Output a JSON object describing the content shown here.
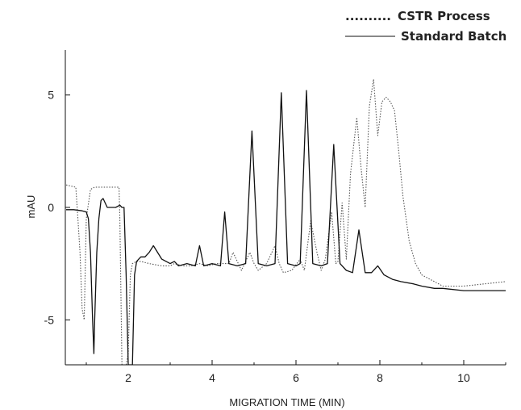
{
  "chart_data": {
    "type": "line",
    "title": "",
    "xlabel": "MIGRATION TIME (MIN)",
    "ylabel": "mAU",
    "xlim": [
      0.5,
      11.0
    ],
    "ylim": [
      -7.0,
      7.0
    ],
    "x_ticks": [
      2,
      4,
      6,
      8,
      10
    ],
    "y_ticks": [
      5,
      0,
      -5
    ],
    "x_tick_labels": [
      "2",
      "4",
      "6",
      "8",
      "10"
    ],
    "y_tick_labels": [
      "5",
      "0",
      "-5"
    ],
    "grid": false,
    "legend": {
      "placement": "top-right",
      "entries": [
        {
          "marker": "..........",
          "label": "CSTR Process",
          "style": "dotted"
        },
        {
          "marker": "",
          "label": "Standard Batch",
          "style": "solid"
        }
      ]
    },
    "series": [
      {
        "name": "CSTR Process",
        "style": "dotted",
        "color": "#555555",
        "x": [
          0.52,
          0.75,
          0.8,
          0.85,
          0.9,
          0.95,
          1.0,
          1.1,
          1.2,
          1.3,
          1.5,
          1.7,
          1.78,
          1.8,
          1.85,
          1.9,
          1.95,
          2.0,
          2.05,
          2.1,
          2.2,
          2.3,
          2.5,
          2.8,
          3.0,
          3.1,
          3.3,
          3.5,
          3.7,
          3.9,
          4.1,
          4.3,
          4.4,
          4.5,
          4.7,
          4.9,
          5.0,
          5.1,
          5.3,
          5.5,
          5.6,
          5.7,
          5.9,
          6.1,
          6.2,
          6.35,
          6.5,
          6.6,
          6.7,
          6.85,
          6.95,
          7.0,
          7.1,
          7.2,
          7.3,
          7.45,
          7.55,
          7.65,
          7.75,
          7.85,
          7.95,
          8.05,
          8.15,
          8.25,
          8.35,
          8.45,
          8.55,
          8.7,
          8.85,
          9.0,
          9.1,
          9.3,
          9.5,
          10.0,
          10.5,
          11.0
        ],
        "y": [
          1.0,
          0.9,
          -0.5,
          -2.0,
          -4.5,
          -5.0,
          -0.5,
          0.8,
          0.9,
          0.9,
          0.9,
          0.9,
          0.9,
          -0.5,
          -7.0,
          -7.0,
          -7.0,
          -6.5,
          -3.0,
          -2.5,
          -2.4,
          -2.4,
          -2.5,
          -2.6,
          -2.6,
          -2.5,
          -2.6,
          -2.6,
          -2.5,
          -2.6,
          -2.5,
          -2.5,
          -2.5,
          -2.0,
          -2.8,
          -2.0,
          -2.5,
          -2.8,
          -2.5,
          -1.7,
          -2.5,
          -2.9,
          -2.8,
          -2.3,
          -2.8,
          -0.6,
          -2.0,
          -2.8,
          -2.3,
          -0.2,
          -2.5,
          -2.4,
          0.2,
          -2.3,
          1.5,
          4.0,
          1.8,
          0.0,
          4.5,
          5.7,
          3.2,
          4.7,
          4.9,
          4.7,
          4.3,
          2.5,
          0.5,
          -1.5,
          -2.5,
          -3.0,
          -3.1,
          -3.3,
          -3.5,
          -3.5,
          -3.4,
          -3.3
        ]
      },
      {
        "name": "Standard Batch",
        "style": "solid",
        "color": "#111111",
        "x": [
          0.52,
          0.7,
          0.9,
          1.0,
          1.05,
          1.1,
          1.15,
          1.18,
          1.2,
          1.25,
          1.3,
          1.35,
          1.4,
          1.5,
          1.6,
          1.7,
          1.8,
          1.85,
          1.9,
          1.95,
          2.0,
          2.05,
          2.1,
          2.15,
          2.2,
          2.25,
          2.3,
          2.4,
          2.5,
          2.6,
          2.8,
          3.0,
          3.1,
          3.2,
          3.4,
          3.6,
          3.7,
          3.8,
          4.0,
          4.2,
          4.3,
          4.4,
          4.6,
          4.8,
          4.95,
          5.1,
          5.3,
          5.5,
          5.65,
          5.8,
          6.0,
          6.1,
          6.25,
          6.4,
          6.6,
          6.75,
          6.9,
          7.05,
          7.2,
          7.35,
          7.5,
          7.65,
          7.8,
          7.95,
          8.1,
          8.3,
          8.5,
          8.8,
          9.0,
          9.3,
          9.5,
          10.0,
          10.5,
          11.0
        ],
        "y": [
          -0.1,
          -0.1,
          -0.15,
          -0.2,
          -0.5,
          -2.0,
          -5.0,
          -6.5,
          -5.0,
          -2.0,
          -0.5,
          0.3,
          0.4,
          0.0,
          0.0,
          0.0,
          0.1,
          0.0,
          0.0,
          -3.0,
          -7.0,
          -7.0,
          -7.0,
          -3.0,
          -2.4,
          -2.3,
          -2.2,
          -2.2,
          -2.0,
          -1.7,
          -2.3,
          -2.5,
          -2.4,
          -2.6,
          -2.5,
          -2.6,
          -1.7,
          -2.6,
          -2.5,
          -2.6,
          -0.2,
          -2.5,
          -2.6,
          -2.5,
          3.4,
          -2.5,
          -2.6,
          -2.5,
          5.1,
          -2.5,
          -2.6,
          -2.5,
          5.2,
          -2.5,
          -2.6,
          -2.5,
          2.8,
          -2.5,
          -2.8,
          -2.9,
          -1.0,
          -2.9,
          -2.9,
          -2.6,
          -3.0,
          -3.2,
          -3.3,
          -3.4,
          -3.5,
          -3.6,
          -3.6,
          -3.7,
          -3.7,
          -3.7
        ]
      }
    ]
  }
}
